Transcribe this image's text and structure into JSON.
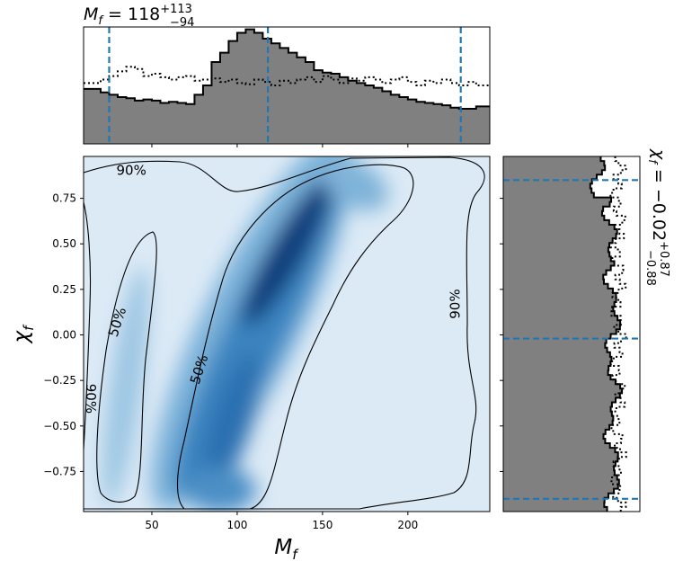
{
  "chart_data": [
    {
      "type": "area",
      "panel": "top-marginal",
      "title": {
        "base": "M",
        "sub": "f",
        "eq": " = 118",
        "sup": "+113",
        "subval": "−94"
      },
      "x_range": [
        10,
        248
      ],
      "edges": [
        10,
        15,
        20,
        25,
        30,
        35,
        40,
        45,
        50,
        55,
        60,
        65,
        70,
        75,
        80,
        85,
        90,
        95,
        100,
        105,
        110,
        115,
        120,
        125,
        130,
        135,
        140,
        145,
        150,
        155,
        160,
        165,
        170,
        175,
        180,
        185,
        190,
        195,
        200,
        205,
        210,
        215,
        220,
        225,
        230,
        235,
        240,
        248
      ],
      "posterior": [
        0.47,
        0.47,
        0.44,
        0.42,
        0.4,
        0.39,
        0.37,
        0.38,
        0.37,
        0.35,
        0.36,
        0.35,
        0.34,
        0.42,
        0.5,
        0.7,
        0.78,
        0.88,
        0.95,
        0.98,
        0.95,
        0.9,
        0.86,
        0.82,
        0.78,
        0.74,
        0.7,
        0.63,
        0.61,
        0.6,
        0.57,
        0.54,
        0.52,
        0.5,
        0.48,
        0.45,
        0.42,
        0.4,
        0.38,
        0.36,
        0.35,
        0.34,
        0.33,
        0.31,
        0.3,
        0.3,
        0.32
      ],
      "prior": [
        0.52,
        0.52,
        0.55,
        0.58,
        0.62,
        0.66,
        0.64,
        0.58,
        0.6,
        0.57,
        0.55,
        0.57,
        0.58,
        0.54,
        0.55,
        0.56,
        0.53,
        0.55,
        0.52,
        0.51,
        0.55,
        0.53,
        0.5,
        0.54,
        0.52,
        0.55,
        0.57,
        0.53,
        0.58,
        0.55,
        0.52,
        0.56,
        0.54,
        0.57,
        0.55,
        0.52,
        0.55,
        0.57,
        0.53,
        0.5,
        0.54,
        0.52,
        0.55,
        0.52,
        0.5,
        0.53,
        0.5
      ],
      "quantile_lines": [
        25,
        118,
        231
      ]
    },
    {
      "type": "heatmap",
      "panel": "joint",
      "xlabel": {
        "base": "M",
        "sub": "f"
      },
      "ylabel": {
        "base": "χ",
        "sub": "f"
      },
      "xlim": [
        10,
        248
      ],
      "ylim": [
        -0.97,
        0.98
      ],
      "x_ticks": [
        50,
        100,
        150,
        200
      ],
      "y_ticks": [
        -0.75,
        -0.5,
        -0.25,
        0.0,
        0.25,
        0.5,
        0.75
      ],
      "x_tick_labels": [
        "50",
        "100",
        "150",
        "200"
      ],
      "y_tick_labels": [
        "−0.75",
        "−0.50",
        "−0.25",
        "0.00",
        "0.25",
        "0.50",
        "0.75"
      ],
      "colormap": "Blues",
      "contour_labels": [
        {
          "text": "90%",
          "x": 38,
          "y": 0.9,
          "angle": 0
        },
        {
          "text": "50%",
          "x": 30,
          "y": 0.07,
          "angle": -72
        },
        {
          "text": "50%",
          "x": 78,
          "y": -0.19,
          "angle": -72
        },
        {
          "text": "90%",
          "x": 14,
          "y": -0.35,
          "angle": 90
        },
        {
          "text": "90%",
          "x": 228,
          "y": 0.17,
          "angle": -90
        }
      ]
    },
    {
      "type": "area",
      "panel": "right-marginal",
      "title": {
        "base": "χ",
        "sub": "f",
        "eq": " = −0.02",
        "sup": "+0.87",
        "subval": "−0.88"
      },
      "y_range": [
        -0.97,
        0.98
      ],
      "quantile_lines": [
        -0.9,
        -0.02,
        0.85
      ]
    }
  ]
}
